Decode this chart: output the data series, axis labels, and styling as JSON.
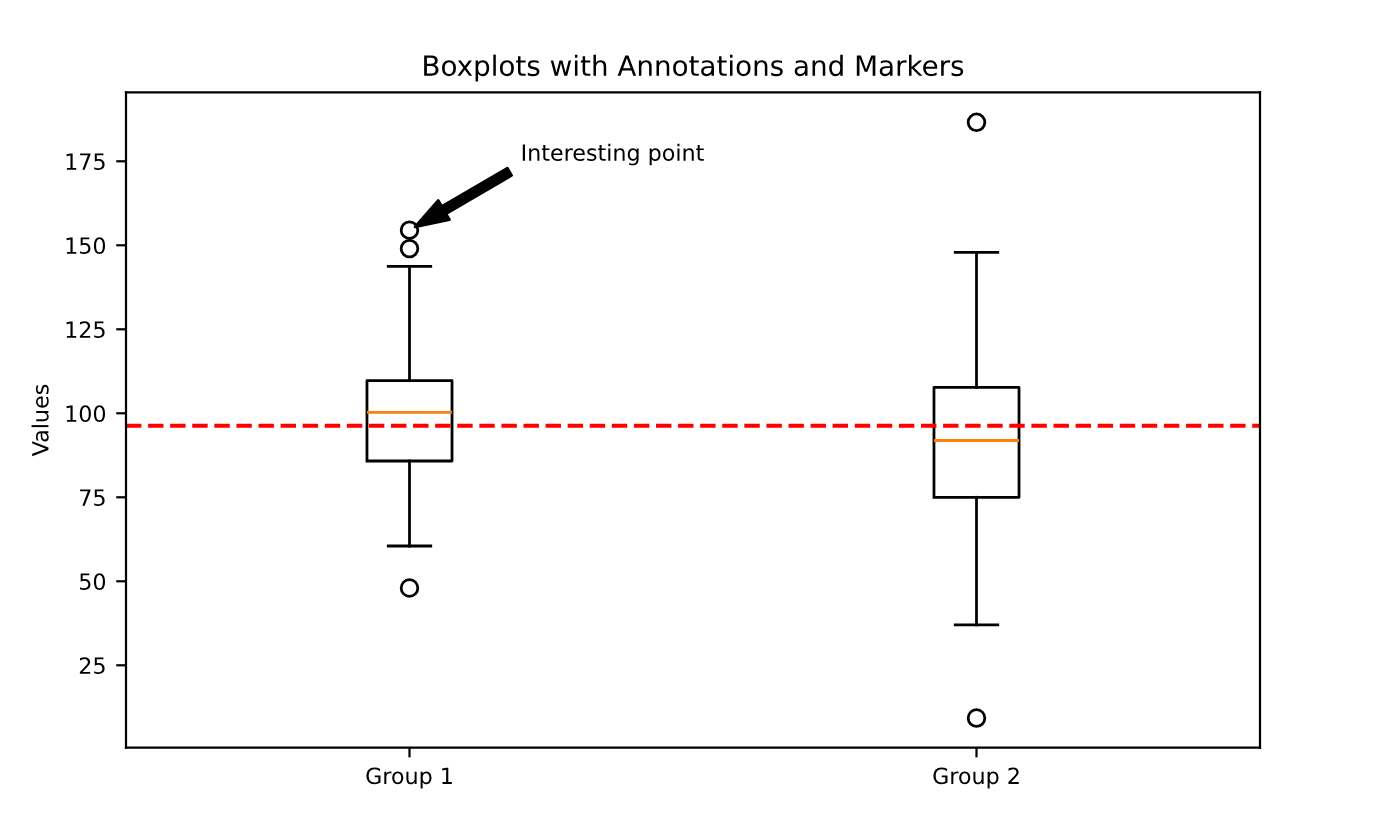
{
  "chart_data": {
    "type": "box",
    "title": "Boxplots with Annotations and Markers",
    "ylabel": "Values",
    "categories": [
      "Group 1",
      "Group 2"
    ],
    "boxes": [
      {
        "low": 60.5,
        "q1": 85.8,
        "median": 100.3,
        "q3": 109.7,
        "high": 143.7,
        "outliers": [
          154.5,
          149,
          48
        ]
      },
      {
        "low": 37,
        "q1": 75,
        "median": 91.9,
        "q3": 107.7,
        "high": 147.9,
        "outliers": [
          186.6,
          9.3
        ]
      }
    ],
    "ylim": [
      0.5,
      195.5
    ],
    "yticks": [
      25,
      50,
      75,
      100,
      125,
      150,
      175
    ],
    "ref_lines": [
      {
        "axis": "y",
        "value": 96.3,
        "color": "#ff0000",
        "line_style": "dashed"
      }
    ],
    "annotations": [
      "Interesting point"
    ],
    "grid": false,
    "legend": false
  }
}
